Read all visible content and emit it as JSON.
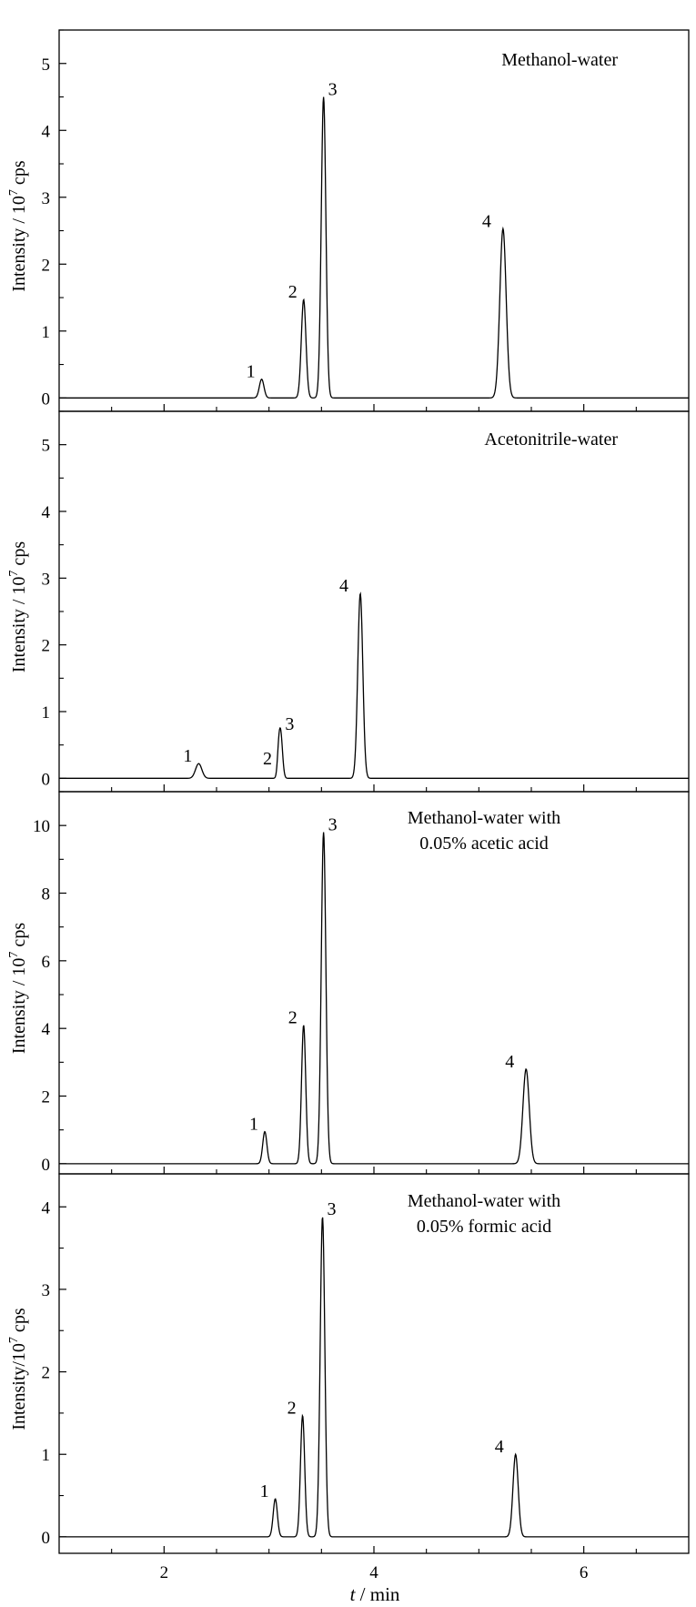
{
  "chart_data": [
    {
      "type": "line",
      "title": "",
      "annotation_lines": [
        "Methanol-water"
      ],
      "ylabel_parts": [
        "Intensity / 10",
        "7",
        " cps"
      ],
      "xlabel": "",
      "xlim": [
        1.0,
        7.0
      ],
      "ylim": [
        -0.2,
        5.5
      ],
      "yticks": [
        0,
        1,
        2,
        3,
        4,
        5
      ],
      "yminor": [
        0.5,
        1.5,
        2.5,
        3.5,
        4.5,
        5.5
      ],
      "xticks": [
        2,
        4,
        6
      ],
      "xminor": [
        1.5,
        2.5,
        3,
        3.5,
        4.5,
        5,
        5.5,
        6.5
      ],
      "peaks": [
        {
          "label": "1",
          "x": 2.93,
          "height": 0.28,
          "width": 0.022
        },
        {
          "label": "2",
          "x": 3.33,
          "height": 1.47,
          "width": 0.022
        },
        {
          "label": "3",
          "x": 3.52,
          "height": 4.5,
          "width": 0.022
        },
        {
          "label": "4",
          "x": 5.23,
          "height": 2.53,
          "width": 0.03
        }
      ]
    },
    {
      "type": "line",
      "title": "",
      "annotation_lines": [
        "Acetonitrile-water"
      ],
      "ylabel_parts": [
        "Intensity / 10",
        "7",
        " cps"
      ],
      "xlabel": "",
      "xlim": [
        1.0,
        7.0
      ],
      "ylim": [
        -0.2,
        5.5
      ],
      "yticks": [
        0,
        1,
        2,
        3,
        4,
        5
      ],
      "yminor": [
        0.5,
        1.5,
        2.5,
        3.5,
        4.5,
        5.5
      ],
      "xticks": [
        2,
        4,
        6
      ],
      "xminor": [
        1.5,
        2.5,
        3,
        3.5,
        4.5,
        5,
        5.5,
        6.5
      ],
      "peaks": [
        {
          "label": "1",
          "x": 2.33,
          "height": 0.22,
          "width": 0.03
        },
        {
          "label": "2",
          "x": 3.09,
          "height": 0.18,
          "width": 0.012
        },
        {
          "label": "3",
          "x": 3.11,
          "height": 0.7,
          "width": 0.018
        },
        {
          "label": "4",
          "x": 3.87,
          "height": 2.77,
          "width": 0.024
        }
      ]
    },
    {
      "type": "line",
      "title": "",
      "annotation_lines": [
        "Methanol-water with",
        "0.05% acetic acid"
      ],
      "ylabel_parts": [
        "Intensity / 10",
        "7",
        " cps"
      ],
      "xlabel": "",
      "xlim": [
        1.0,
        7.0
      ],
      "ylim": [
        -0.3,
        11.0
      ],
      "yticks": [
        0,
        2,
        4,
        6,
        8,
        10
      ],
      "yminor": [
        1,
        3,
        5,
        7,
        9,
        11
      ],
      "xticks": [
        2,
        4,
        6
      ],
      "xminor": [
        1.5,
        2.5,
        3,
        3.5,
        4.5,
        5,
        5.5,
        6.5
      ],
      "peaks": [
        {
          "label": "1",
          "x": 2.96,
          "height": 0.95,
          "width": 0.02
        },
        {
          "label": "2",
          "x": 3.33,
          "height": 4.1,
          "width": 0.02
        },
        {
          "label": "3",
          "x": 3.52,
          "height": 9.8,
          "width": 0.022
        },
        {
          "label": "4",
          "x": 5.45,
          "height": 2.8,
          "width": 0.03
        }
      ]
    },
    {
      "type": "line",
      "title": "",
      "annotation_lines": [
        "Methanol-water with",
        "0.05% formic acid"
      ],
      "ylabel_parts": [
        "Intensity/10",
        "7",
        " cps"
      ],
      "xlabel_parts": [
        "t",
        " / min"
      ],
      "xlim": [
        1.0,
        7.0
      ],
      "ylim": [
        -0.2,
        4.4
      ],
      "yticks": [
        0,
        1,
        2,
        3,
        4
      ],
      "yminor": [
        0.5,
        1.5,
        2.5,
        3.5
      ],
      "xticks": [
        2,
        4,
        6
      ],
      "xminor": [
        1.5,
        2.5,
        3,
        3.5,
        4.5,
        5,
        5.5,
        6.5
      ],
      "peaks": [
        {
          "label": "1",
          "x": 3.06,
          "height": 0.46,
          "width": 0.02
        },
        {
          "label": "2",
          "x": 3.32,
          "height": 1.47,
          "width": 0.02
        },
        {
          "label": "3",
          "x": 3.51,
          "height": 3.88,
          "width": 0.022
        },
        {
          "label": "4",
          "x": 5.35,
          "height": 1.0,
          "width": 0.025
        }
      ]
    }
  ]
}
